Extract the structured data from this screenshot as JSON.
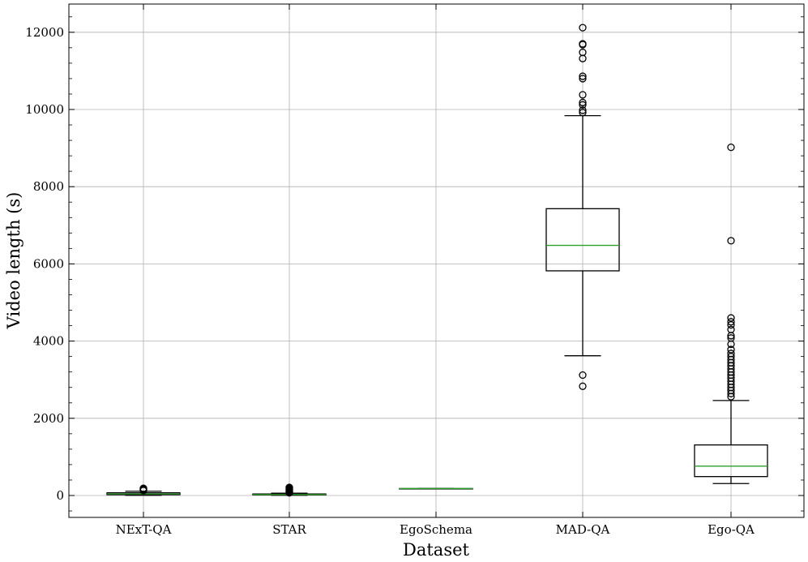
{
  "chart_data": {
    "type": "box",
    "xlabel": "Dataset",
    "ylabel": "Video length (s)",
    "ylim": [
      -600,
      12800
    ],
    "yticks": [
      0,
      2000,
      4000,
      6000,
      8000,
      10000,
      12000
    ],
    "grid": true,
    "categories": [
      "NExT-QA",
      "STAR",
      "EgoSchema",
      "MAD-QA",
      "Ego-QA"
    ],
    "boxes": [
      {
        "q1": 20,
        "median": 40,
        "q3": 70,
        "whisker_low": 5,
        "whisker_high": 110,
        "outliers": [
          130,
          145,
          160,
          175,
          185
        ]
      },
      {
        "q1": 15,
        "median": 25,
        "q3": 40,
        "whisker_low": 5,
        "whisker_high": 60,
        "outliers": [
          70,
          90,
          110,
          130,
          150,
          170,
          190,
          210
        ]
      },
      {
        "q1": 180,
        "median": 180,
        "q3": 180,
        "whisker_low": 180,
        "whisker_high": 180,
        "outliers": []
      },
      {
        "q1": 5820,
        "median": 6480,
        "q3": 7430,
        "whisker_low": 3620,
        "whisker_high": 9840,
        "outliers": [
          2830,
          3120,
          9920,
          9980,
          10120,
          10180,
          10380,
          10800,
          10860,
          11320,
          11480,
          11680,
          11700,
          12120
        ]
      },
      {
        "q1": 490,
        "median": 760,
        "q3": 1310,
        "whisker_low": 310,
        "whisker_high": 2460,
        "outliers": [
          2560,
          2640,
          2720,
          2800,
          2880,
          2960,
          3040,
          3120,
          3200,
          3280,
          3360,
          3440,
          3520,
          3600,
          3680,
          3780,
          3920,
          4080,
          4140,
          4300,
          4420,
          4500,
          4600,
          6600,
          9020
        ]
      }
    ],
    "colors": {
      "box": "#000000",
      "median": "#2ca02c",
      "grid": "#b0b0b0"
    }
  }
}
